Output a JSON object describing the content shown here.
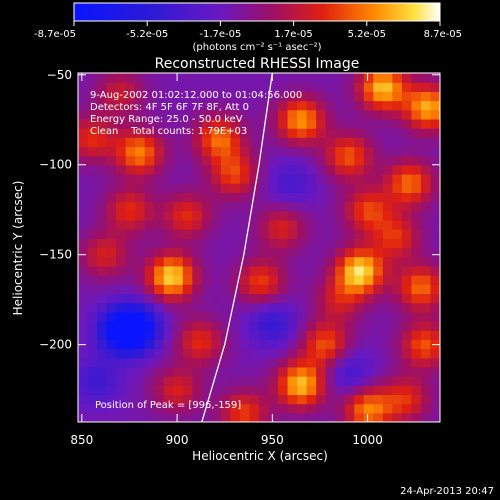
{
  "chart_data": {
    "type": "heatmap",
    "title": "Reconstructed RHESSI Image",
    "xlabel": "Heliocentric X (arcsec)",
    "ylabel": "Heliocentric Y (arcsec)",
    "xlim": [
      848,
      1038
    ],
    "ylim": [
      -243,
      -49
    ],
    "x_ticks": [
      850,
      900,
      950,
      1000
    ],
    "y_ticks": [
      -50,
      -100,
      -150,
      -200
    ],
    "colorbar": {
      "min": -8.7e-05,
      "max": 8.7e-05,
      "tick_labels": [
        "-8.7e-05",
        "-5.2e-05",
        "-1.7e-05",
        "1.7e-05",
        "5.2e-05",
        "8.7e-05"
      ],
      "unit_label": "(photons cm⁻² s⁻¹ asec⁻²)",
      "colormap": "rhessi-blue-purple-red-yellow-white"
    },
    "annotations": {
      "time_range": "9-Aug-2002 01:02:12.000 to 01:04:56.000",
      "detectors": "Detectors: 4F 5F 6F 7F 8F, Att 0",
      "energy": "Energy Range: 25.0 - 50.0 keV",
      "clean": "Clean    Total counts: 1.79E+03",
      "peak": "Position of Peak = [996,-159]"
    },
    "limb_curve": [
      [
        913,
        -243
      ],
      [
        925,
        -200
      ],
      [
        935,
        -150
      ],
      [
        943,
        -100
      ],
      [
        950,
        -49
      ]
    ],
    "field_sources": [
      {
        "x": 1008,
        "y": -57,
        "value": 8e-05
      },
      {
        "x": 1032,
        "y": -68,
        "value": 7.5e-05
      },
      {
        "x": 855,
        "y": -85,
        "value": 4.5e-05
      },
      {
        "x": 880,
        "y": -93,
        "value": 6.5e-05
      },
      {
        "x": 922,
        "y": -85,
        "value": 6e-05
      },
      {
        "x": 965,
        "y": -75,
        "value": 7e-05
      },
      {
        "x": 990,
        "y": -95,
        "value": 5.5e-05
      },
      {
        "x": 1022,
        "y": -110,
        "value": 6e-05
      },
      {
        "x": 875,
        "y": -125,
        "value": 4.5e-05
      },
      {
        "x": 930,
        "y": -105,
        "value": 5e-05
      },
      {
        "x": 955,
        "y": -135,
        "value": 4e-05
      },
      {
        "x": 1000,
        "y": -125,
        "value": 5e-05
      },
      {
        "x": 862,
        "y": -150,
        "value": 4e-05
      },
      {
        "x": 897,
        "y": -162,
        "value": 8.5e-05
      },
      {
        "x": 944,
        "y": -165,
        "value": 5e-05
      },
      {
        "x": 996,
        "y": -159,
        "value": 8.7e-05
      },
      {
        "x": 1028,
        "y": -168,
        "value": 6e-05
      },
      {
        "x": 880,
        "y": -190,
        "value": -5e-05
      },
      {
        "x": 872,
        "y": -192,
        "value": -8.7e-05
      },
      {
        "x": 912,
        "y": -198,
        "value": 4.5e-05
      },
      {
        "x": 950,
        "y": -188,
        "value": -3.5e-05
      },
      {
        "x": 978,
        "y": -200,
        "value": 5.5e-05
      },
      {
        "x": 1030,
        "y": -200,
        "value": 5.5e-05
      },
      {
        "x": 858,
        "y": -220,
        "value": -3e-05
      },
      {
        "x": 900,
        "y": -225,
        "value": 4e-05
      },
      {
        "x": 965,
        "y": -222,
        "value": 8e-05
      },
      {
        "x": 1000,
        "y": -236,
        "value": 6.5e-05
      },
      {
        "x": 1020,
        "y": -230,
        "value": 4.5e-05
      },
      {
        "x": 935,
        "y": -238,
        "value": 5e-05
      },
      {
        "x": 985,
        "y": -175,
        "value": 3.5e-05
      },
      {
        "x": 1015,
        "y": -140,
        "value": 4.5e-05
      },
      {
        "x": 870,
        "y": -60,
        "value": 3.5e-05
      },
      {
        "x": 905,
        "y": -128,
        "value": 4.5e-05
      },
      {
        "x": 960,
        "y": -110,
        "value": -2.5e-05
      },
      {
        "x": 990,
        "y": -215,
        "value": -3e-05
      }
    ]
  },
  "footer": {
    "timestamp": "24-Apr-2013 20:47"
  }
}
